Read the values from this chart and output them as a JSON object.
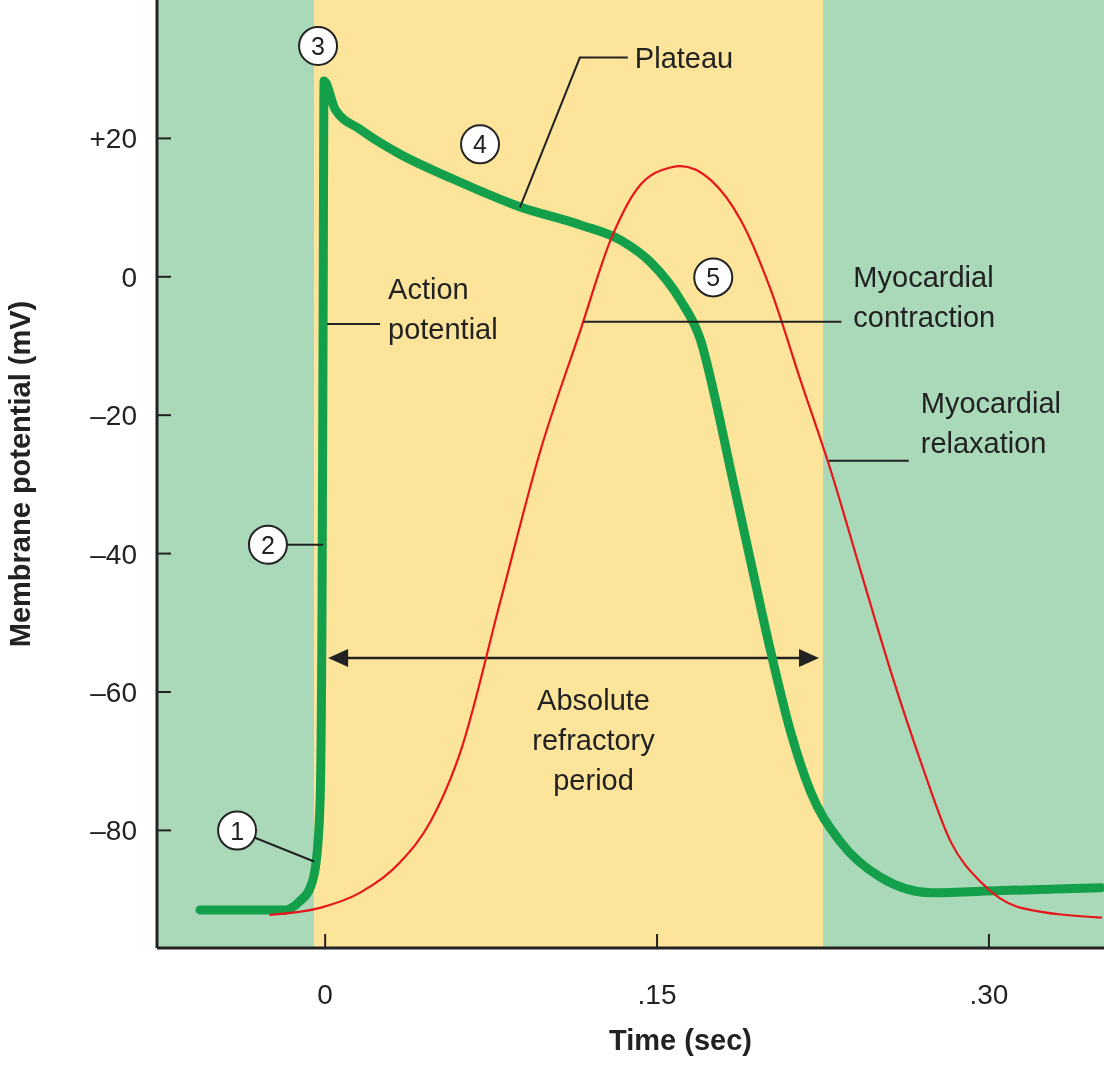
{
  "chart_data": {
    "type": "line",
    "xlabel": "Time (sec)",
    "ylabel": "Membrane potential (mV)",
    "xlim": [
      -0.076,
      0.352
    ],
    "ylim": [
      -97,
      40
    ],
    "xticks": [
      0,
      {
        "value": 0.15,
        "label": ".15"
      },
      {
        "value": 0.3,
        "label": ".30"
      }
    ],
    "yticks": [
      {
        "value": 20,
        "label": "+20"
      },
      0,
      {
        "value": -20,
        "label": "–20"
      },
      {
        "value": -40,
        "label": "–40"
      },
      {
        "value": -60,
        "label": "–60"
      },
      {
        "value": -80,
        "label": "–80"
      }
    ],
    "bands": [
      {
        "axis": "x",
        "from": -0.076,
        "to": -0.005,
        "color": "#a9d9b9"
      },
      {
        "axis": "x",
        "from": -0.005,
        "to": 0.225,
        "label": "Absolute refractory period",
        "color": "#fde49b"
      },
      {
        "axis": "x",
        "from": 0.225,
        "to": 0.352,
        "color": "#a9d9b9"
      }
    ],
    "series": [
      {
        "name": "Action potential",
        "color": "#14a04a",
        "x": [
          -0.0566,
          -0.0181,
          -0.0113,
          -0.0068,
          -0.0041,
          -0.0023,
          -0.0014,
          -0.0009,
          -0.0005,
          0.0045,
          0.0158,
          0.0339,
          0.0566,
          0.0882,
          0.1154,
          0.1335,
          0.1471,
          0.1606,
          0.1697,
          0.1765,
          0.1833,
          0.1923,
          0.2014,
          0.2104,
          0.2195,
          0.233,
          0.2511,
          0.2738,
          0.3054,
          0.3507
        ],
        "values": [
          -91.5,
          -91.5,
          -90.2,
          -88.3,
          -84.6,
          -75.9,
          -46.9,
          -3.4,
          28.3,
          24.2,
          21.3,
          17.7,
          14.3,
          10.1,
          7.5,
          5.3,
          2.1,
          -3.4,
          -9.2,
          -17.9,
          -28,
          -41.1,
          -54.2,
          -65.8,
          -74.5,
          -81.7,
          -86.8,
          -89,
          -88.7,
          -88.3
        ]
      },
      {
        "color": "#e8161b",
        "x": [
          -0.0249,
          -0.0023,
          0.0158,
          0.0339,
          0.0475,
          0.0611,
          0.0792,
          0.0973,
          0.1154,
          0.129,
          0.1425,
          0.1561,
          0.1606,
          0.1742,
          0.1878,
          0.2014,
          0.2149,
          0.2285,
          0.2421,
          0.2557,
          0.2692,
          0.2828,
          0.2964,
          0.3145,
          0.3507
        ],
        "values": [
          -92.2,
          -91.2,
          -89,
          -84.6,
          -78.8,
          -68.7,
          -46.9,
          -25.1,
          -7.7,
          5.3,
          13.3,
          15.8,
          16,
          14,
          8.2,
          -1.9,
          -15,
          -28,
          -42.6,
          -57.1,
          -70.1,
          -81.7,
          -87.5,
          -91.2,
          -92.6
        ]
      }
    ],
    "annotations": [
      {
        "text": "1",
        "x": -0.005,
        "y": -84.5
      },
      {
        "text": "2",
        "x": -0.001,
        "y": -38
      },
      {
        "text": "3",
        "x": -0.0005,
        "y": 28.3
      },
      {
        "text": "4",
        "x": 0.07,
        "y": 12.5
      },
      {
        "text": "5",
        "x": 0.165,
        "y": -5
      },
      {
        "text": "Plateau",
        "x": 0.088,
        "y": 10
      },
      {
        "text": "Myocardial contraction",
        "x": 0.1167,
        "y": -6.5
      },
      {
        "text": "Myocardial relaxation",
        "x": 0.2276,
        "y": -26.6
      }
    ]
  }
}
